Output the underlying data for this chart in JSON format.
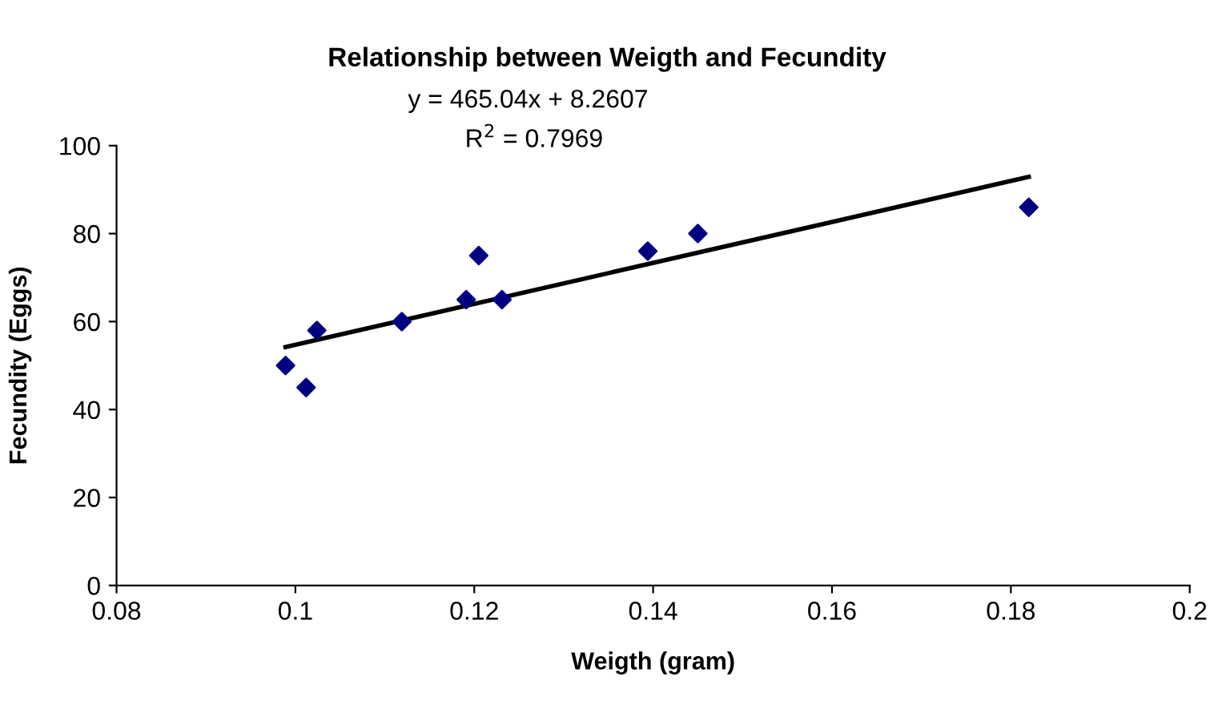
{
  "chart_data": {
    "type": "scatter",
    "title": "Relationship between Weigth and Fecundity",
    "xlabel": "Weigth (gram)",
    "ylabel": "Fecundity (Eggs)",
    "annotations": [
      "y = 465.04x + 8.2607",
      "R$^{2}$ = 0.7969"
    ],
    "xlim": [
      0.08,
      0.2
    ],
    "xticks": [
      0.08,
      0.1,
      0.12,
      0.14,
      0.16,
      0.18,
      0.2
    ],
    "ylim": [
      0,
      100
    ],
    "yticks": [
      0,
      20,
      40,
      60,
      80,
      100
    ],
    "grid": false,
    "legend": false,
    "series": [
      {
        "color": "#000080",
        "marker": "diamond",
        "x": [
          0.0989,
          0.1012,
          0.1024,
          0.1119,
          0.1191,
          0.1205,
          0.1231,
          0.1394,
          0.145,
          0.182
        ],
        "values": [
          50,
          45,
          58,
          60,
          65,
          75,
          65,
          76,
          80,
          86
        ]
      },
      {
        "type": "line",
        "color": "#000000",
        "marker": "none",
        "line_style": "solid",
        "x": [
          0.0989,
          0.182
        ],
        "values": [
          54.2,
          92.9
        ]
      }
    ]
  }
}
